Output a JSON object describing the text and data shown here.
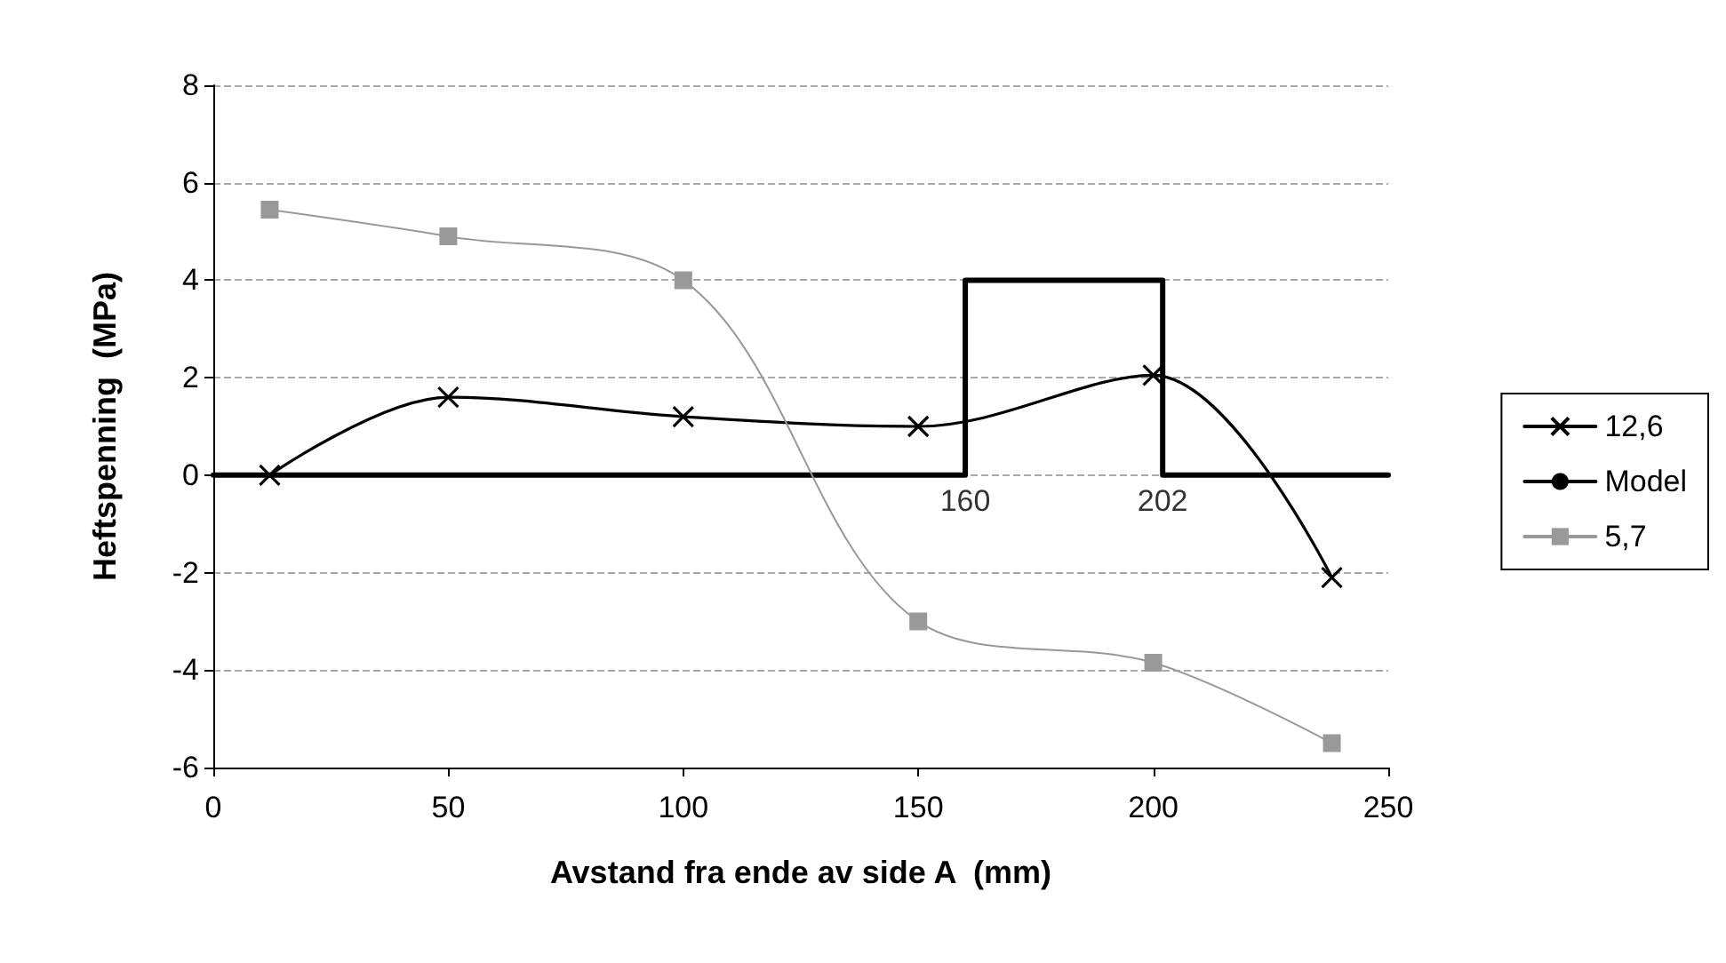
{
  "chart_data": {
    "type": "line",
    "xlabel": "Avstand fra ende av side A  (mm)",
    "ylabel": "Heftspenning  (MPa)",
    "xlim": [
      0,
      250
    ],
    "xticks": [
      0,
      50,
      100,
      150,
      200,
      250
    ],
    "ylim": [
      -6,
      8
    ],
    "yticks": [
      -6,
      -4,
      -2,
      0,
      2,
      4,
      6,
      8
    ],
    "grid": "y",
    "legend": "right",
    "series": [
      {
        "name": "12,6",
        "color": "#000000",
        "marker": "cross",
        "x": [
          12,
          50,
          100,
          150,
          200,
          238
        ],
        "values": [
          0,
          1.6,
          1.2,
          1.0,
          2.05,
          -2.1
        ]
      },
      {
        "name": "Model",
        "color": "#000000",
        "marker": "none",
        "x": [
          0,
          160,
          160,
          202,
          202,
          250
        ],
        "values": [
          0,
          0,
          4,
          4,
          0,
          0
        ]
      },
      {
        "name": "5,7",
        "color": "#999999",
        "marker": "square",
        "x": [
          12,
          50,
          100,
          150,
          200,
          238
        ],
        "values": [
          5.45,
          4.9,
          4.0,
          -3.0,
          -3.85,
          -5.5
        ]
      }
    ],
    "annotations": [
      {
        "text": "160",
        "x": 160,
        "y": 0
      },
      {
        "text": "202",
        "x": 202,
        "y": 0
      }
    ]
  }
}
